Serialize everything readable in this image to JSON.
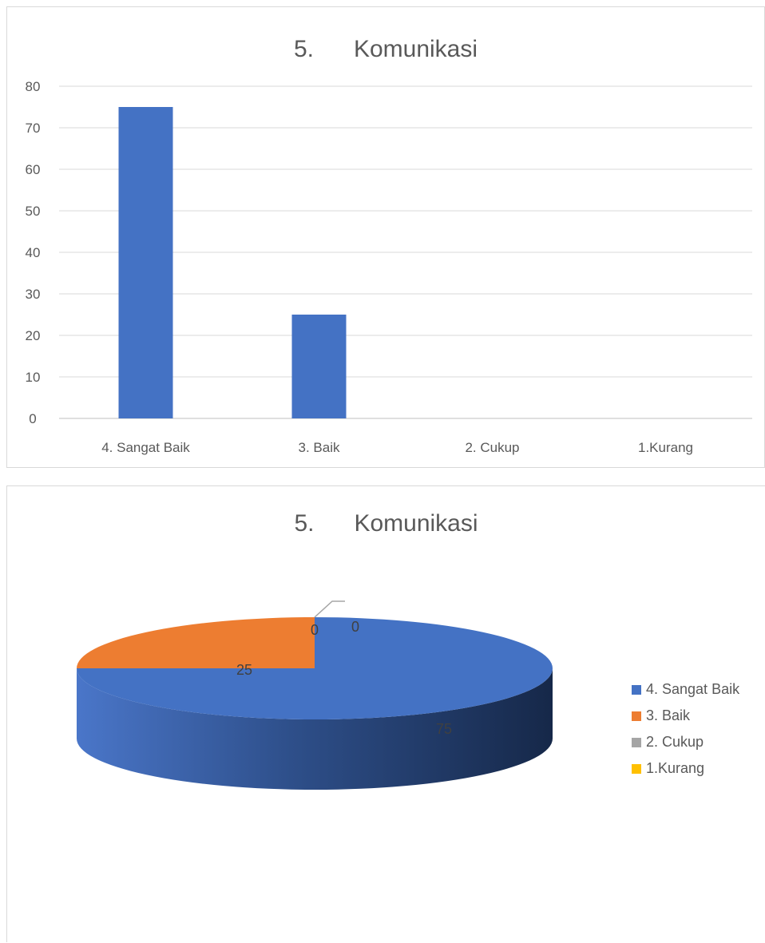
{
  "chart_data": [
    {
      "type": "bar",
      "title": "5.      Komunikasi",
      "categories": [
        "4. Sangat Baik",
        "3. Baik",
        "2. Cukup",
        "1.Kurang"
      ],
      "values": [
        75,
        25,
        0,
        0
      ],
      "ylim": [
        0,
        80
      ],
      "yticks": [
        0,
        10,
        20,
        30,
        40,
        50,
        60,
        70,
        80
      ],
      "grid": true,
      "bar_color": "#4472c4",
      "xlabel": "",
      "ylabel": ""
    },
    {
      "type": "pie",
      "title": "5.      Komunikasi",
      "categories": [
        "4. Sangat Baik",
        "3. Baik",
        "2. Cukup",
        "1.Kurang"
      ],
      "values": [
        75,
        25,
        0,
        0
      ],
      "colors": [
        "#4472c4",
        "#ed7d31",
        "#a5a5a5",
        "#ffc000"
      ],
      "style": "3d",
      "legend": "right"
    }
  ]
}
